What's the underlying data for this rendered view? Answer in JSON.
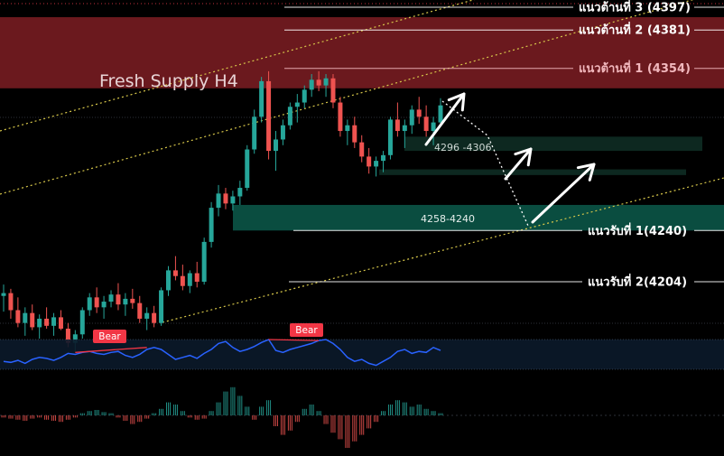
{
  "chart_data": {
    "type": "candlestick",
    "title": "Fresh Supply H4",
    "zone_labels": {
      "upper_mid": "4296 -4306",
      "lower": "4258-4240"
    },
    "zones": [
      {
        "name": "Fresh Supply H4",
        "from": 4340,
        "to": 4390,
        "color": "#7a1c22"
      },
      {
        "name": "4296 -4306",
        "from": 4296,
        "to": 4306,
        "color": "#0e2a22"
      },
      {
        "name": "4280",
        "from": 4279,
        "to": 4283,
        "color": "#0e2a22"
      },
      {
        "name": "4258-4240",
        "from": 4240,
        "to": 4258,
        "color": "#0b5143"
      }
    ],
    "levels": [
      {
        "label": "แนวต้านที่ 3 (4397)",
        "value": 4397,
        "color": "#ffffff"
      },
      {
        "label": "แนวต้านที่ 2 (4381)",
        "value": 4381,
        "color": "#ffffff"
      },
      {
        "label": "แนวต้านที่ 1 (4354)",
        "value": 4354,
        "color": "#f2b8bd"
      },
      {
        "label": "แนวรับที่ 1(4240)",
        "value": 4240,
        "color": "#ffffff"
      },
      {
        "label": "แนวรับที่ 2(4204)",
        "value": 4204,
        "color": "#ffffff"
      }
    ],
    "y_range": [
      4150,
      4410
    ],
    "candles": [
      [
        4194,
        4202,
        4183,
        4196
      ],
      [
        4196,
        4199,
        4178,
        4184
      ],
      [
        4184,
        4193,
        4172,
        4175
      ],
      [
        4175,
        4186,
        4166,
        4182
      ],
      [
        4182,
        4188,
        4170,
        4172
      ],
      [
        4172,
        4181,
        4164,
        4178
      ],
      [
        4178,
        4186,
        4171,
        4173
      ],
      [
        4173,
        4182,
        4166,
        4179
      ],
      [
        4179,
        4184,
        4170,
        4171
      ],
      [
        4171,
        4175,
        4158,
        4161
      ],
      [
        4161,
        4170,
        4155,
        4167
      ],
      [
        4167,
        4186,
        4164,
        4184
      ],
      [
        4184,
        4196,
        4180,
        4193
      ],
      [
        4193,
        4200,
        4182,
        4186
      ],
      [
        4186,
        4194,
        4178,
        4190
      ],
      [
        4190,
        4198,
        4186,
        4195
      ],
      [
        4195,
        4203,
        4184,
        4188
      ],
      [
        4188,
        4196,
        4180,
        4192
      ],
      [
        4192,
        4199,
        4185,
        4189
      ],
      [
        4189,
        4194,
        4175,
        4178
      ],
      [
        4178,
        4186,
        4170,
        4182
      ],
      [
        4182,
        4187,
        4172,
        4175
      ],
      [
        4175,
        4200,
        4173,
        4198
      ],
      [
        4198,
        4215,
        4194,
        4212
      ],
      [
        4212,
        4222,
        4205,
        4208
      ],
      [
        4208,
        4216,
        4198,
        4201
      ],
      [
        4201,
        4212,
        4196,
        4210
      ],
      [
        4210,
        4218,
        4200,
        4204
      ],
      [
        4204,
        4235,
        4202,
        4232
      ],
      [
        4232,
        4260,
        4228,
        4256
      ],
      [
        4256,
        4272,
        4250,
        4266
      ],
      [
        4266,
        4270,
        4255,
        4259
      ],
      [
        4259,
        4268,
        4254,
        4264
      ],
      [
        4264,
        4275,
        4258,
        4270
      ],
      [
        4270,
        4300,
        4268,
        4297
      ],
      [
        4297,
        4325,
        4294,
        4320
      ],
      [
        4320,
        4348,
        4316,
        4345
      ],
      [
        4345,
        4352,
        4290,
        4296
      ],
      [
        4296,
        4310,
        4282,
        4304
      ],
      [
        4304,
        4318,
        4300,
        4314
      ],
      [
        4314,
        4330,
        4311,
        4327
      ],
      [
        4327,
        4336,
        4316,
        4330
      ],
      [
        4330,
        4342,
        4326,
        4339
      ],
      [
        4339,
        4350,
        4334,
        4346
      ],
      [
        4346,
        4352,
        4338,
        4342
      ],
      [
        4342,
        4350,
        4334,
        4347
      ],
      [
        4347,
        4350,
        4326,
        4330
      ],
      [
        4330,
        4334,
        4306,
        4310
      ],
      [
        4310,
        4318,
        4300,
        4314
      ],
      [
        4314,
        4320,
        4298,
        4302
      ],
      [
        4302,
        4307,
        4288,
        4292
      ],
      [
        4292,
        4298,
        4280,
        4285
      ],
      [
        4285,
        4292,
        4278,
        4289
      ],
      [
        4289,
        4296,
        4281,
        4293
      ],
      [
        4293,
        4320,
        4290,
        4318
      ],
      [
        4318,
        4330,
        4306,
        4310
      ],
      [
        4310,
        4318,
        4298,
        4314
      ],
      [
        4314,
        4328,
        4308,
        4325
      ],
      [
        4325,
        4334,
        4315,
        4320
      ],
      [
        4320,
        4328,
        4306,
        4310
      ],
      [
        4310,
        4320,
        4300,
        4316
      ],
      [
        4316,
        4333,
        4314,
        4328
      ]
    ],
    "rsi": {
      "series": [
        48,
        47,
        49,
        46,
        50,
        52,
        51,
        49,
        52,
        56,
        55,
        57,
        58,
        56,
        55,
        57,
        58,
        54,
        52,
        55,
        60,
        62,
        60,
        55,
        50,
        52,
        54,
        51,
        56,
        60,
        66,
        68,
        62,
        58,
        60,
        63,
        67,
        70,
        59,
        57,
        60,
        62,
        64,
        66,
        69,
        70,
        66,
        60,
        52,
        48,
        50,
        46,
        44,
        48,
        52,
        58,
        60,
        56,
        58,
        57,
        62,
        59
      ],
      "markers": [
        {
          "label": "Bear",
          "color": "#f23645"
        },
        {
          "label": "Bear",
          "color": "#f23645"
        }
      ]
    },
    "histogram": [
      -2,
      -3,
      -4,
      -5,
      -3,
      -2,
      -4,
      -5,
      -6,
      -4,
      -2,
      2,
      4,
      5,
      3,
      2,
      -2,
      -5,
      -8,
      -6,
      -3,
      2,
      6,
      12,
      10,
      4,
      -2,
      -4,
      -3,
      4,
      12,
      22,
      26,
      18,
      8,
      -4,
      8,
      14,
      -10,
      -18,
      -14,
      -6,
      6,
      10,
      4,
      -8,
      -16,
      -22,
      -30,
      -24,
      -18,
      -12,
      -6,
      4,
      10,
      14,
      12,
      8,
      10,
      6,
      4,
      2
    ]
  }
}
